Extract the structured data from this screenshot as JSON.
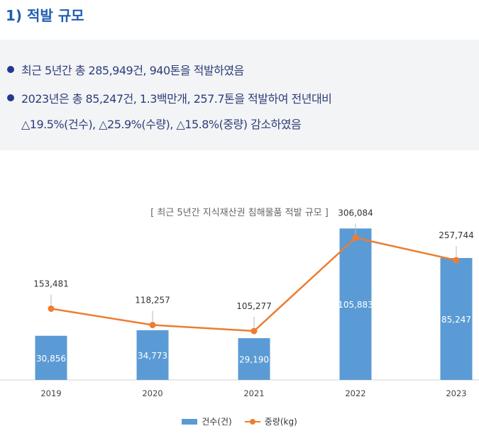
{
  "section": {
    "heading": "1) 적발 규모",
    "bullets": [
      "최근 5년간 총 285,949건, 940톤을 적발하였음",
      "2023년은 총 85,247건, 1.3백만개, 257.7톤을 적발하여 전년대비"
    ],
    "bullet2_continuation": "△19.5%(건수), △25.9%(수량), △15.8%(중량) 감소하였음"
  },
  "chart_data": {
    "type": "bar",
    "title": "[ 최근 5년간 지식재산권 침해물품 적발 규모 ]",
    "categories": [
      "2019",
      "2020",
      "2021",
      "2022",
      "2023"
    ],
    "series": [
      {
        "name": "건수(건)",
        "type": "bar",
        "values": [
          30856,
          34773,
          29190,
          105883,
          85247
        ]
      },
      {
        "name": "중량(kg)",
        "type": "line",
        "values": [
          153481,
          118257,
          105277,
          306084,
          257744
        ]
      }
    ],
    "value_labels": {
      "bar": [
        "30,856",
        "34,773",
        "29,190",
        "105,883",
        "85,247"
      ],
      "line": [
        "153,481",
        "118,257",
        "105,277",
        "306,084",
        "257,744"
      ]
    },
    "bar_ylim": [
      0,
      112000
    ],
    "line_ylim": [
      0,
      345000
    ],
    "legend_position": "bottom",
    "grid": false,
    "colors": {
      "bar": "#5b9bd5",
      "line": "#ed7d31"
    }
  }
}
